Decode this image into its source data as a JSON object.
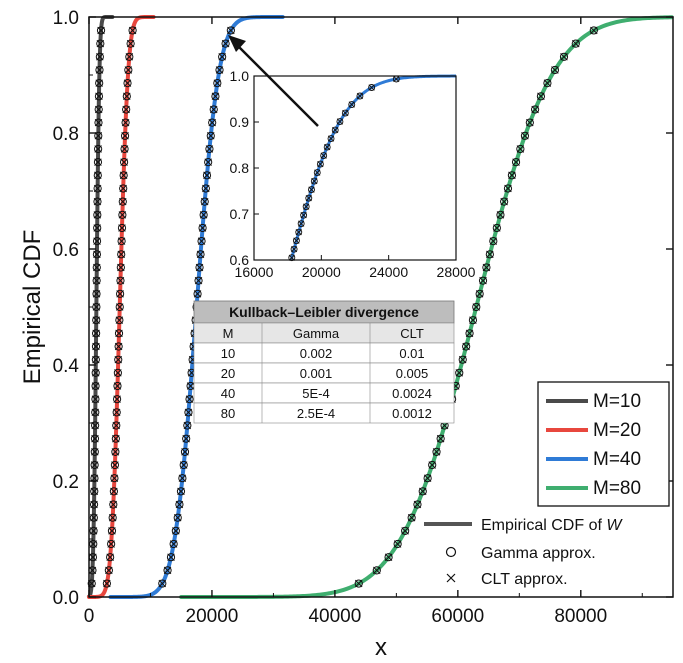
{
  "chart_data": {
    "type": "line",
    "xlabel": "x",
    "ylabel": "Empirical CDF",
    "xlim": [
      0,
      95000
    ],
    "ylim": [
      0,
      1
    ],
    "x_ticks": [
      "0",
      "20000",
      "40000",
      "60000",
      "80000"
    ],
    "x_tick_values": [
      0,
      20000,
      40000,
      60000,
      80000
    ],
    "y_ticks": [
      "0.0",
      "0.2",
      "0.4",
      "0.6",
      "0.8",
      "1.0"
    ],
    "y_tick_values": [
      0,
      0.2,
      0.4,
      0.6,
      0.8,
      1.0
    ],
    "series": [
      {
        "name": "M=10",
        "color": "#4a4a4a",
        "mean": 1200,
        "sd": 380
      },
      {
        "name": "M=20",
        "color": "#e8473e",
        "mean": 5000,
        "sd": 1050
      },
      {
        "name": "M=40",
        "color": "#2f7bd6",
        "mean": 17500,
        "sd": 2800
      },
      {
        "name": "M=80",
        "color": "#3fae6f",
        "mean": 63000,
        "sd": 9600
      }
    ],
    "marker_legend": [
      {
        "label": "Empirical CDF of ",
        "italic_suffix": "W",
        "symbol": "line"
      },
      {
        "label": "Gamma approx.",
        "symbol": "circle"
      },
      {
        "label": "CLT approx.",
        "symbol": "cross"
      }
    ],
    "inset": {
      "series": "M=40",
      "xlim": [
        16000,
        28000
      ],
      "ylim": [
        0.6,
        1.0
      ],
      "x_ticks": [
        "16000",
        "20000",
        "24000",
        "28000"
      ],
      "x_tick_values": [
        16000,
        20000,
        24000,
        28000
      ],
      "y_ticks": [
        "0.6",
        "0.7",
        "0.8",
        "0.9",
        "1.0"
      ],
      "y_tick_values": [
        0.6,
        0.7,
        0.8,
        0.9,
        1.0
      ]
    },
    "table": {
      "title": "Kullback–Leibler divergence",
      "headers": [
        "M",
        "Gamma",
        "CLT"
      ],
      "rows": [
        [
          "10",
          "0.002",
          "0.01"
        ],
        [
          "20",
          "0.001",
          "0.005"
        ],
        [
          "40",
          "5E-4",
          "0.0024"
        ],
        [
          "80",
          "2.5E-4",
          "0.0012"
        ]
      ]
    }
  }
}
